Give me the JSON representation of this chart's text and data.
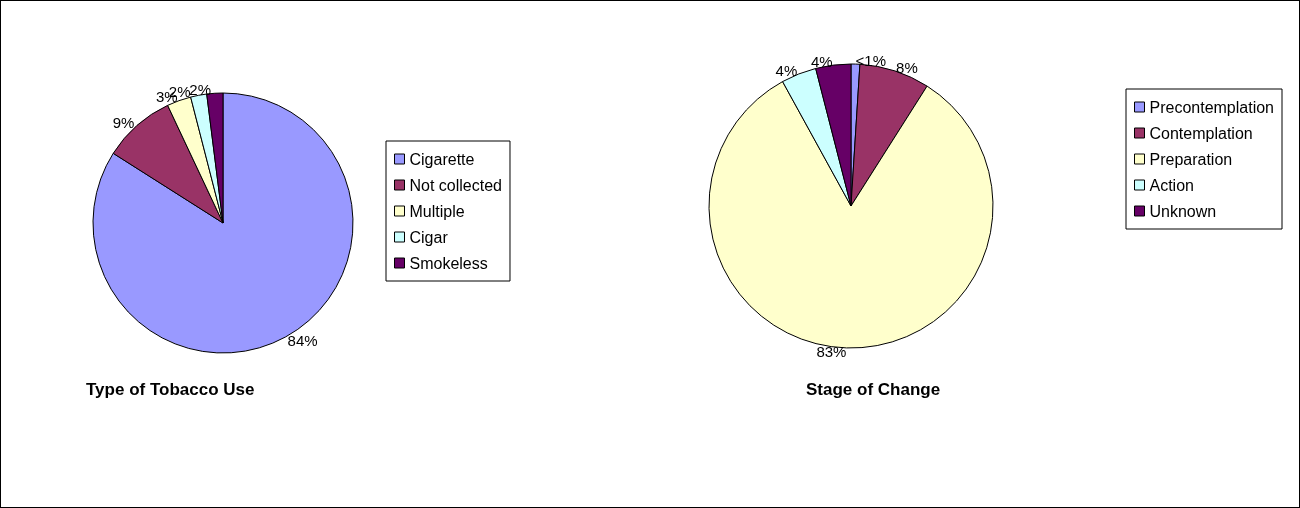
{
  "chart_data": [
    {
      "type": "pie",
      "title": "Type of Tobacco Use",
      "categories": [
        "Cigarette",
        "Not collected",
        "Multiple",
        "Cigar",
        "Smokeless"
      ],
      "values": [
        84,
        9,
        3,
        2,
        2
      ],
      "value_labels": [
        "84%",
        "9%",
        "3%",
        "2%",
        "2%"
      ],
      "colors": [
        "#9999ff",
        "#993366",
        "#ffffcc",
        "#ccffff",
        "#660066"
      ],
      "legend": "right"
    },
    {
      "type": "pie",
      "title": "Stage of Change",
      "categories": [
        "Precontemplation",
        "Contemplation",
        "Preparation",
        "Action",
        "Unknown"
      ],
      "values": [
        1,
        8,
        83,
        4,
        4
      ],
      "value_labels": [
        "<1%",
        "8%",
        "83%",
        "4%",
        "4%"
      ],
      "colors": [
        "#9999ff",
        "#993366",
        "#ffffcc",
        "#ccffff",
        "#660066"
      ],
      "legend": "right"
    }
  ]
}
